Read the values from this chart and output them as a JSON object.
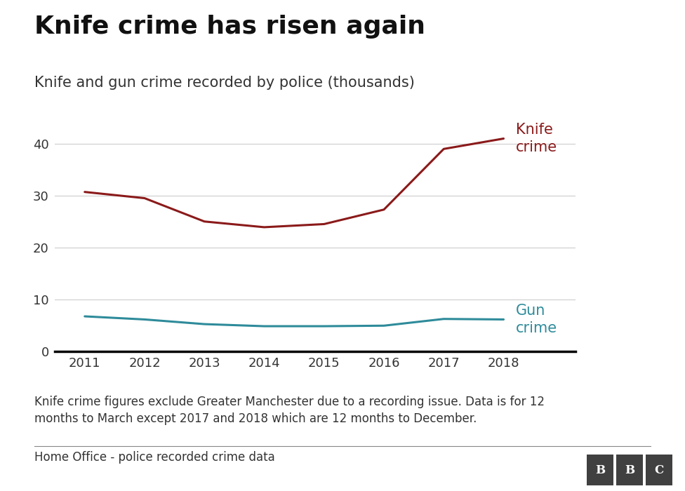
{
  "title": "Knife crime has risen again",
  "subtitle": "Knife and gun crime recorded by police (thousands)",
  "years": [
    2011,
    2012,
    2013,
    2014,
    2015,
    2016,
    2017,
    2018
  ],
  "knife_crime": [
    30.7,
    29.5,
    25.0,
    23.9,
    24.5,
    27.3,
    39.0,
    41.0
  ],
  "gun_crime": [
    6.7,
    6.1,
    5.2,
    4.8,
    4.8,
    4.9,
    6.2,
    6.1
  ],
  "knife_color": "#8B1A1A",
  "gun_color": "#2E8B9A",
  "knife_label": "Knife\ncrime",
  "gun_label": "Gun\ncrime",
  "ylim": [
    0,
    45
  ],
  "yticks": [
    0,
    10,
    20,
    30,
    40
  ],
  "footnote": "Knife crime figures exclude Greater Manchester due to a recording issue. Data is for 12\nmonths to March except 2017 and 2018 which are 12 months to December.",
  "source": "Home Office - police recorded crime data",
  "background_color": "#ffffff",
  "grid_color": "#cccccc",
  "title_fontsize": 26,
  "subtitle_fontsize": 15,
  "label_fontsize": 15,
  "tick_fontsize": 13,
  "footnote_fontsize": 12,
  "source_fontsize": 12,
  "line_width": 2.2
}
